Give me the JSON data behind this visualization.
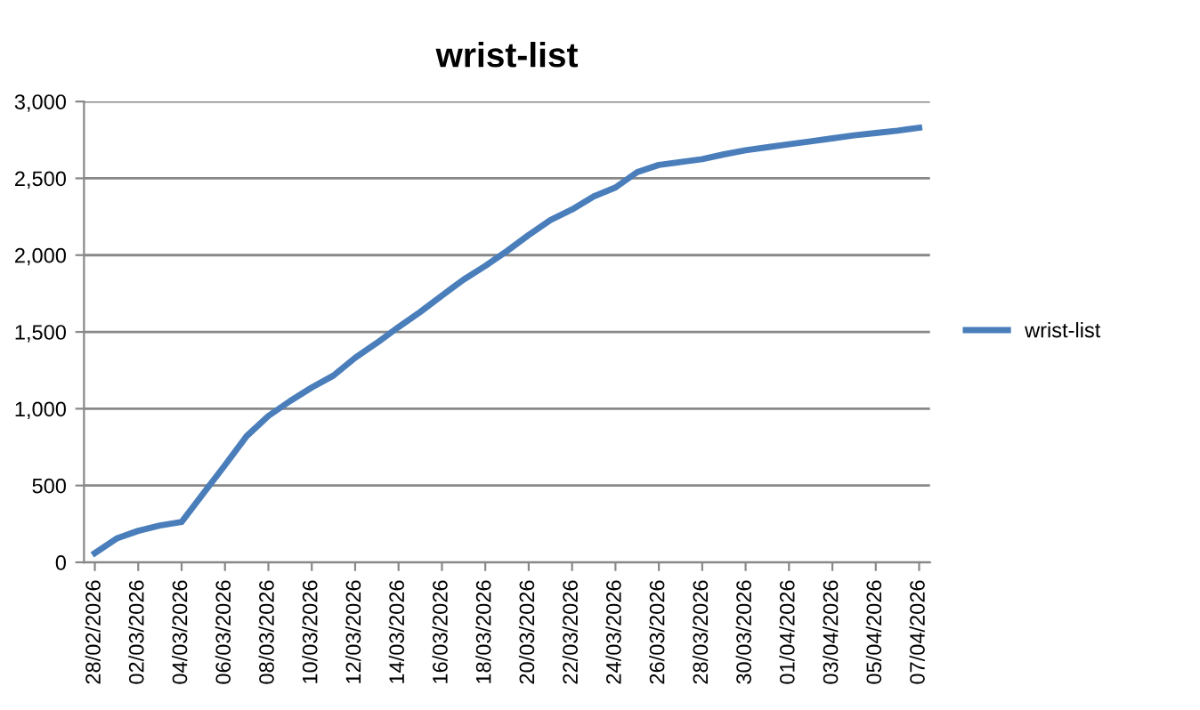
{
  "chart_data": {
    "type": "line",
    "title": "wrist-list",
    "categories": [
      "28/02/2026",
      null,
      "02/03/2026",
      null,
      "04/03/2026",
      null,
      "06/03/2026",
      null,
      "08/03/2026",
      null,
      "10/03/2026",
      null,
      "12/03/2026",
      null,
      "14/03/2026",
      null,
      "16/03/2026",
      null,
      "18/03/2026",
      null,
      "20/03/2026",
      null,
      "22/03/2026",
      null,
      "24/03/2026",
      null,
      "26/03/2026",
      null,
      "28/03/2026",
      null,
      "30/03/2026",
      null,
      "01/04/2026",
      null,
      "03/04/2026",
      null,
      "05/04/2026",
      null,
      "07/04/2026"
    ],
    "series": [
      {
        "name": "wrist-list",
        "color": "#4a7ebb",
        "values": [
          60,
          155,
          205,
          240,
          263,
          448,
          633,
          822,
          953,
          1050,
          1138,
          1216,
          1332,
          1428,
          1532,
          1630,
          1737,
          1841,
          1930,
          2027,
          2131,
          2228,
          2297,
          2382,
          2440,
          2540,
          2587,
          2606,
          2625,
          2656,
          2683,
          2702,
          2722,
          2741,
          2760,
          2780,
          2795,
          2810,
          2829
        ]
      }
    ],
    "ylim": [
      0,
      3000
    ],
    "yticks": [
      0,
      {
        "value": 500,
        "label": "500"
      },
      {
        "value": 1000,
        "label": "1,000"
      },
      {
        "value": 1500,
        "label": "1,500"
      },
      {
        "value": 2000,
        "label": "2,000"
      },
      {
        "value": 2500,
        "label": "2,500"
      },
      {
        "value": 3000,
        "label": "3,000"
      }
    ],
    "grid": "y",
    "legend": "right",
    "marker": "none",
    "line_style": "solid"
  }
}
